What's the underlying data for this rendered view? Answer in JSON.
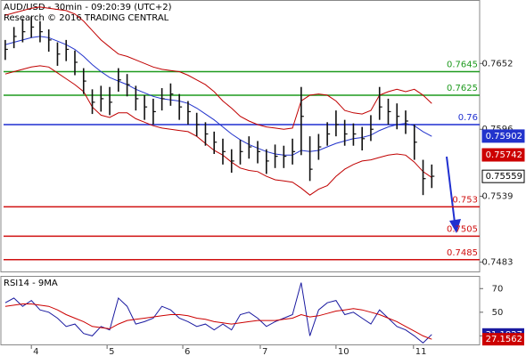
{
  "chart_data": [
    {
      "type": "ohlc",
      "title": "AUD/USD - 30min - 09:20:39 (UTC+2)",
      "subtitle": "Research © 2016 TRADING CENTRAL",
      "xlim": [
        -0.5,
        54.5
      ],
      "ylim": [
        0.7475,
        0.7706
      ],
      "yticks": [
        0.7483,
        0.7539,
        0.7596,
        0.7652
      ],
      "high": [
        0.7672,
        0.7683,
        0.769,
        0.7692,
        0.7688,
        0.7681,
        0.767,
        0.7672,
        0.7663,
        0.7648,
        0.763,
        0.7633,
        0.7632,
        0.7648,
        0.7643,
        0.7633,
        0.7625,
        0.7622,
        0.7631,
        0.7635,
        0.7626,
        0.762,
        0.761,
        0.7602,
        0.7594,
        0.7588,
        0.7579,
        0.7587,
        0.759,
        0.7586,
        0.7579,
        0.7583,
        0.7582,
        0.7588,
        0.7632,
        0.759,
        0.7592,
        0.7602,
        0.7612,
        0.7604,
        0.7601,
        0.7598,
        0.7608,
        0.7632,
        0.7622,
        0.7618,
        0.7612,
        0.76,
        0.757,
        0.7566
      ],
      "low": [
        0.7655,
        0.7665,
        0.767,
        0.7674,
        0.767,
        0.7662,
        0.765,
        0.7654,
        0.7642,
        0.7626,
        0.7609,
        0.7611,
        0.7608,
        0.7628,
        0.7624,
        0.7612,
        0.7604,
        0.76,
        0.7612,
        0.7616,
        0.7604,
        0.76,
        0.759,
        0.7582,
        0.7575,
        0.7566,
        0.7559,
        0.7566,
        0.7571,
        0.7567,
        0.7558,
        0.7563,
        0.7563,
        0.7566,
        0.7574,
        0.7552,
        0.757,
        0.7582,
        0.759,
        0.7582,
        0.7582,
        0.7578,
        0.7586,
        0.7604,
        0.76,
        0.7596,
        0.7592,
        0.757,
        0.754,
        0.7546
      ],
      "close": [
        0.7664,
        0.7675,
        0.7679,
        0.7683,
        0.7679,
        0.7672,
        0.766,
        0.7664,
        0.7653,
        0.7637,
        0.7619,
        0.7622,
        0.7619,
        0.7638,
        0.7634,
        0.7622,
        0.7615,
        0.7611,
        0.7622,
        0.7626,
        0.7615,
        0.7611,
        0.76,
        0.7592,
        0.7585,
        0.7577,
        0.7569,
        0.7577,
        0.7581,
        0.7577,
        0.7569,
        0.7573,
        0.7573,
        0.7577,
        0.7607,
        0.7562,
        0.7581,
        0.7592,
        0.76,
        0.7592,
        0.7592,
        0.7588,
        0.7596,
        0.7615,
        0.7611,
        0.7607,
        0.7603,
        0.7585,
        0.7554,
        0.7556
      ],
      "lines": [
        {
          "color": "#c00000",
          "values": [
            0.7693,
            0.7695,
            0.7697,
            0.7699,
            0.77,
            0.7699,
            0.7698,
            0.7697,
            0.7694,
            0.7688,
            0.768,
            0.7672,
            0.7666,
            0.766,
            0.7658,
            0.7655,
            0.7652,
            0.7649,
            0.7647,
            0.7646,
            0.7645,
            0.7642,
            0.7638,
            0.7634,
            0.7628,
            0.762,
            0.7614,
            0.7607,
            0.7603,
            0.76,
            0.7598,
            0.7597,
            0.7596,
            0.7597,
            0.762,
            0.7625,
            0.7626,
            0.7625,
            0.762,
            0.7612,
            0.761,
            0.7609,
            0.7612,
            0.7625,
            0.7628,
            0.763,
            0.7628,
            0.763,
            0.7625,
            0.7618
          ]
        },
        {
          "color": "#c00000",
          "values": [
            0.7643,
            0.7645,
            0.7647,
            0.7649,
            0.765,
            0.7649,
            0.7644,
            0.7639,
            0.7634,
            0.7628,
            0.7615,
            0.7608,
            0.7606,
            0.761,
            0.761,
            0.7605,
            0.7602,
            0.7599,
            0.7597,
            0.7596,
            0.7595,
            0.7594,
            0.759,
            0.7584,
            0.7578,
            0.7574,
            0.7568,
            0.7563,
            0.7561,
            0.756,
            0.7556,
            0.7553,
            0.7552,
            0.7551,
            0.7546,
            0.754,
            0.7545,
            0.7548,
            0.7556,
            0.7562,
            0.7566,
            0.7569,
            0.757,
            0.7572,
            0.7574,
            0.7575,
            0.7574,
            0.7568,
            0.756,
            0.7555
          ]
        },
        {
          "color": "#2233cc",
          "values": [
            0.7668,
            0.767,
            0.7672,
            0.7674,
            0.7675,
            0.7674,
            0.7671,
            0.7668,
            0.7664,
            0.7658,
            0.7651,
            0.7645,
            0.764,
            0.7637,
            0.7634,
            0.763,
            0.7627,
            0.7624,
            0.7622,
            0.7621,
            0.762,
            0.7618,
            0.7614,
            0.7609,
            0.7604,
            0.7598,
            0.7592,
            0.7587,
            0.7583,
            0.758,
            0.7577,
            0.7575,
            0.7574,
            0.7574,
            0.7578,
            0.7577,
            0.7578,
            0.7581,
            0.7584,
            0.7586,
            0.7588,
            0.7589,
            0.7591,
            0.7595,
            0.7598,
            0.76,
            0.7601,
            0.7599,
            0.7594,
            0.759
          ]
        }
      ],
      "levels": [
        {
          "value": 0.7645,
          "color": "#1f9a1f"
        },
        {
          "value": 0.7625,
          "color": "#1f9a1f"
        },
        {
          "value": 0.76,
          "color": "#1f2fd0"
        },
        {
          "value": 0.753,
          "color": "#d01010"
        },
        {
          "value": 0.7505,
          "color": "#d01010"
        },
        {
          "value": 0.7485,
          "color": "#d01010"
        }
      ],
      "markers": [
        {
          "value": 0.75902,
          "color": "#2233cc",
          "filled": true
        },
        {
          "value": 0.75742,
          "color": "#cc0000",
          "filled": true
        },
        {
          "value": 0.75559,
          "color": "#000000",
          "filled": false
        }
      ]
    },
    {
      "type": "line",
      "title": "RSI14 - 9MA",
      "xlim": [
        -0.5,
        54.5
      ],
      "ylim": [
        22,
        80
      ],
      "yticks": [
        30,
        50,
        70
      ],
      "xticks": [
        {
          "value": 3,
          "label": "4"
        },
        {
          "value": 11.7,
          "label": "5"
        },
        {
          "value": 20.4,
          "label": "6"
        },
        {
          "value": 29.3,
          "label": "7"
        },
        {
          "value": 38,
          "label": "10"
        },
        {
          "value": 46.9,
          "label": "11"
        }
      ],
      "series": [
        {
          "color": "#1a1aa0",
          "values": [
            58,
            62,
            55,
            60,
            52,
            50,
            45,
            38,
            40,
            32,
            30,
            38,
            35,
            62,
            55,
            40,
            42,
            45,
            55,
            52,
            45,
            42,
            38,
            40,
            35,
            40,
            35,
            48,
            50,
            45,
            38,
            42,
            45,
            48,
            75,
            30,
            52,
            58,
            60,
            48,
            50,
            45,
            40,
            52,
            45,
            38,
            35,
            30,
            24,
            31.1827
          ]
        },
        {
          "color": "#cc0000",
          "values": [
            55,
            56,
            57,
            57,
            56,
            55,
            52,
            48,
            45,
            42,
            38,
            37,
            36,
            40,
            43,
            44,
            45,
            46,
            47,
            48,
            48,
            47,
            45,
            44,
            42,
            41,
            40,
            41,
            42,
            43,
            43,
            43,
            44,
            45,
            48,
            46,
            47,
            49,
            51,
            52,
            53,
            52,
            50,
            48,
            45,
            42,
            38,
            34,
            30,
            27.1562
          ]
        }
      ]
    }
  ]
}
